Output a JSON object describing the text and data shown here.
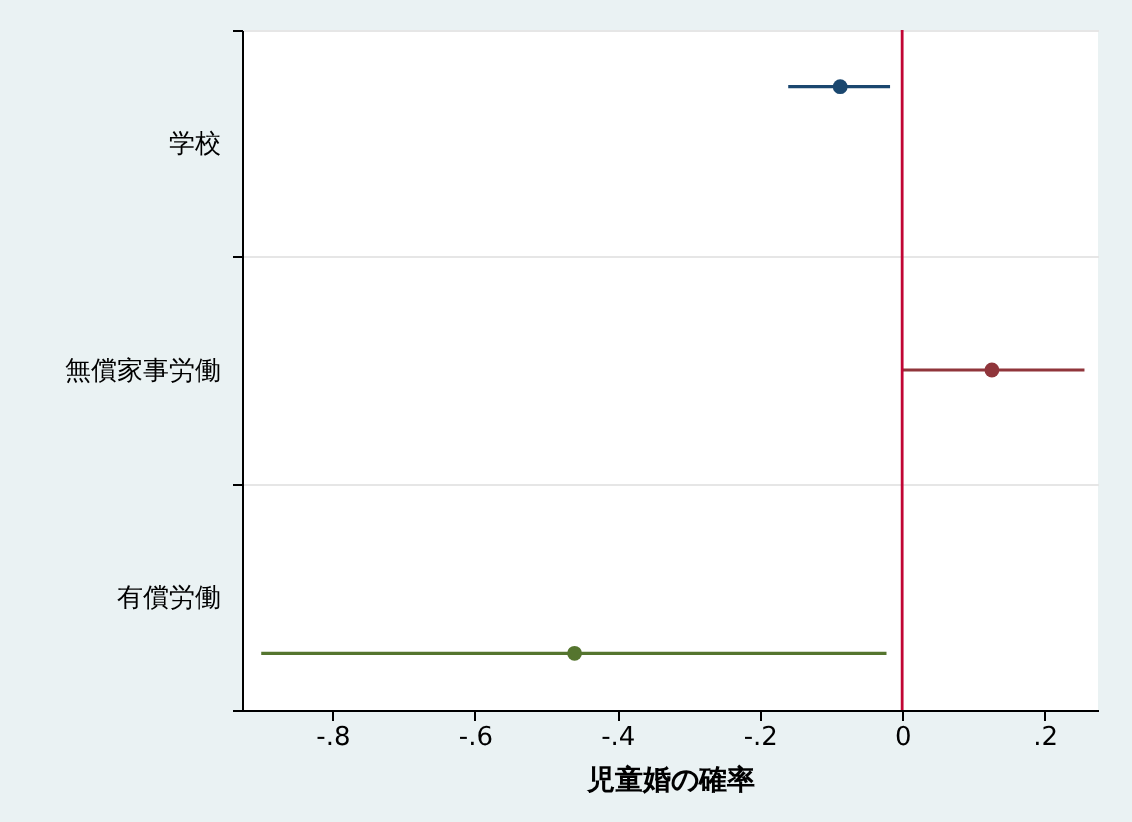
{
  "chart_data": {
    "type": "scatter",
    "xlabel": "児童婚の確率",
    "categories": [
      "学校",
      "無償家事労働",
      "有償労働"
    ],
    "series": [
      {
        "color": "#1a476f",
        "values": [
          -0.087,
          null,
          null
        ],
        "errors": [
          [
            -0.16,
            -0.017
          ],
          null,
          null
        ]
      },
      {
        "color": "#90353b",
        "values": [
          null,
          0.126,
          null
        ],
        "errors": [
          null,
          [
            0.0,
            0.256
          ],
          null
        ]
      },
      {
        "color": "#55752f",
        "values": [
          null,
          null,
          -0.46
        ],
        "errors": [
          null,
          null,
          [
            -0.9,
            -0.022
          ]
        ]
      }
    ],
    "orientation": "horizontal",
    "xlim": [
      -0.927,
      0.275
    ],
    "xticks": [
      {
        "value": -0.8,
        "label": "-.8"
      },
      {
        "value": -0.6,
        "label": "-.6"
      },
      {
        "value": -0.4,
        "label": "-.4"
      },
      {
        "value": -0.2,
        "label": "-.2"
      },
      0,
      {
        "value": 0.2,
        "label": ".2"
      }
    ],
    "ref_lines": [
      {
        "axis": "x",
        "value": 0,
        "color": "#c10534"
      }
    ],
    "grid": "y",
    "marker": "circle"
  }
}
